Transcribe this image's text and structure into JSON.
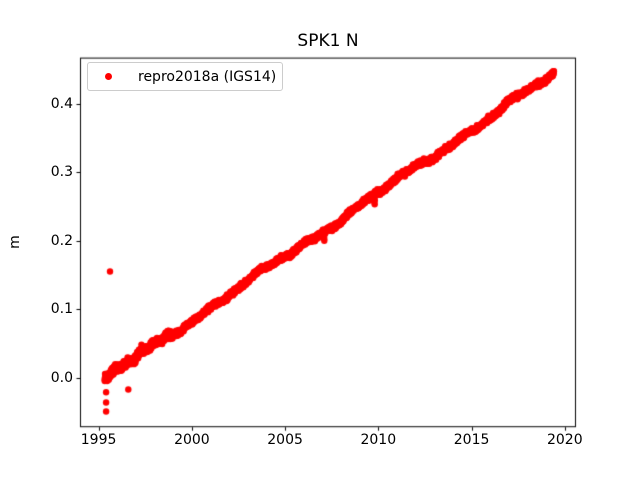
{
  "title": "SPK1 N",
  "chart_data": {
    "type": "scatter",
    "title": "SPK1 N",
    "xlabel": "",
    "ylabel": "m",
    "xlim": [
      1994.0,
      2020.6
    ],
    "ylim": [
      -0.072,
      0.467
    ],
    "xticks": [
      1995,
      2000,
      2005,
      2010,
      2015,
      2020
    ],
    "xtick_labels": [
      "1995",
      "2000",
      "2005",
      "2010",
      "2015",
      "2020"
    ],
    "yticks": [
      0.0,
      0.1,
      0.2,
      0.3,
      0.4
    ],
    "ytick_labels": [
      "0.0",
      "0.1",
      "0.2",
      "0.3",
      "0.4"
    ],
    "grid": false,
    "legend_position": "upper left",
    "background_color": "#ffffff",
    "axis_color": "#000000",
    "series": [
      {
        "name": "repro2018a (IGS14)",
        "color": "#ff0000",
        "marker": "circle",
        "trend": {
          "x_start": 1995.32,
          "y_start": -0.002,
          "x_end": 2019.42,
          "y_end": 0.4435,
          "slope_m_per_year": 0.0185
        },
        "noise_sd_m": 0.002,
        "outliers": [
          [
            1995.4,
            -0.049
          ],
          [
            1995.4,
            -0.036
          ],
          [
            1995.4,
            -0.021
          ],
          [
            1995.61,
            0.155
          ],
          [
            1996.59,
            -0.017
          ]
        ],
        "dips": [
          [
            2006.6,
            0.199
          ],
          [
            2007.1,
            0.2
          ],
          [
            2009.8,
            0.253
          ]
        ]
      }
    ]
  }
}
